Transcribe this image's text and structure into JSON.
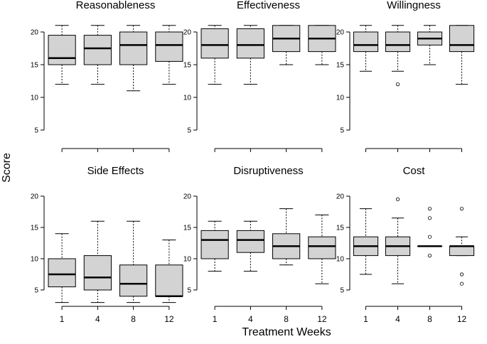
{
  "figure": {
    "ylabel": "Score",
    "xlabel": "Treatment Weeks",
    "box_fill": "#d3d3d3"
  },
  "chart_data": [
    {
      "type": "boxplot",
      "title": "Reasonableness",
      "categories": [
        "1",
        "4",
        "8",
        "12"
      ],
      "ylim": [
        5,
        21
      ],
      "yticks": [
        "5",
        "10",
        "15",
        "20"
      ],
      "boxes": [
        {
          "min": 12,
          "q1": 15,
          "median": 16,
          "q3": 19.5,
          "max": 21,
          "outliers": []
        },
        {
          "min": 12,
          "q1": 15,
          "median": 17.5,
          "q3": 19.5,
          "max": 21,
          "outliers": []
        },
        {
          "min": 11,
          "q1": 15,
          "median": 18,
          "q3": 20,
          "max": 21,
          "outliers": []
        },
        {
          "min": 12,
          "q1": 15.5,
          "median": 18,
          "q3": 20,
          "max": 21,
          "outliers": []
        }
      ]
    },
    {
      "type": "boxplot",
      "title": "Effectiveness",
      "categories": [
        "1",
        "4",
        "8",
        "12"
      ],
      "ylim": [
        5,
        21
      ],
      "yticks": [
        "5",
        "10",
        "15",
        "20"
      ],
      "boxes": [
        {
          "min": 12,
          "q1": 16,
          "median": 18,
          "q3": 20.5,
          "max": 21,
          "outliers": []
        },
        {
          "min": 12,
          "q1": 16,
          "median": 18,
          "q3": 20.5,
          "max": 21,
          "outliers": []
        },
        {
          "min": 15,
          "q1": 17,
          "median": 19,
          "q3": 21,
          "max": 21,
          "outliers": []
        },
        {
          "min": 15,
          "q1": 17,
          "median": 19,
          "q3": 21,
          "max": 21,
          "outliers": []
        }
      ]
    },
    {
      "type": "boxplot",
      "title": "Willingness",
      "categories": [
        "1",
        "4",
        "8",
        "12"
      ],
      "ylim": [
        5,
        21
      ],
      "yticks": [
        "5",
        "10",
        "15",
        "20"
      ],
      "boxes": [
        {
          "min": 14,
          "q1": 17,
          "median": 18,
          "q3": 20,
          "max": 21,
          "outliers": []
        },
        {
          "min": 14,
          "q1": 17,
          "median": 18,
          "q3": 20,
          "max": 21,
          "outliers": [
            12
          ]
        },
        {
          "min": 15,
          "q1": 18,
          "median": 19,
          "q3": 20,
          "max": 21,
          "outliers": []
        },
        {
          "min": 12,
          "q1": 17,
          "median": 18,
          "q3": 21,
          "max": 21,
          "outliers": []
        }
      ]
    },
    {
      "type": "boxplot",
      "title": "Side Effects",
      "categories": [
        "1",
        "4",
        "8",
        "12"
      ],
      "ylim": [
        3,
        20
      ],
      "yticks": [
        "5",
        "10",
        "15",
        "20"
      ],
      "boxes": [
        {
          "min": 3,
          "q1": 5.5,
          "median": 7.5,
          "q3": 10,
          "max": 14,
          "outliers": []
        },
        {
          "min": 3,
          "q1": 5,
          "median": 7,
          "q3": 10.5,
          "max": 16,
          "outliers": []
        },
        {
          "min": 3,
          "q1": 4,
          "median": 6,
          "q3": 9,
          "max": 16,
          "outliers": []
        },
        {
          "min": 3,
          "q1": 4,
          "median": 4,
          "q3": 9,
          "max": 13,
          "outliers": []
        }
      ]
    },
    {
      "type": "boxplot",
      "title": "Disruptiveness",
      "categories": [
        "1",
        "4",
        "8",
        "12"
      ],
      "ylim": [
        5,
        20
      ],
      "yticks": [
        "5",
        "10",
        "15",
        "20"
      ],
      "boxes": [
        {
          "min": 8,
          "q1": 10,
          "median": 13,
          "q3": 14.5,
          "max": 16,
          "outliers": []
        },
        {
          "min": 8,
          "q1": 11,
          "median": 13,
          "q3": 14.5,
          "max": 16,
          "outliers": []
        },
        {
          "min": 9,
          "q1": 10,
          "median": 12,
          "q3": 14,
          "max": 18,
          "outliers": []
        },
        {
          "min": 6,
          "q1": 10,
          "median": 12,
          "q3": 13.5,
          "max": 17,
          "outliers": []
        }
      ]
    },
    {
      "type": "boxplot",
      "title": "Cost",
      "categories": [
        "1",
        "4",
        "8",
        "12"
      ],
      "ylim": [
        5,
        20
      ],
      "yticks": [
        "5",
        "10",
        "15",
        "20"
      ],
      "boxes": [
        {
          "min": 7.5,
          "q1": 10.5,
          "median": 12,
          "q3": 13.5,
          "max": 18,
          "outliers": []
        },
        {
          "min": 6,
          "q1": 10.5,
          "median": 12,
          "q3": 13.5,
          "max": 16.5,
          "outliers": [
            19.5
          ]
        },
        {
          "min": 12,
          "q1": 12,
          "median": 12,
          "q3": 12,
          "max": 12,
          "outliers": [
            10.5,
            13.5,
            16.5,
            18
          ]
        },
        {
          "min": 10.5,
          "q1": 10.5,
          "median": 12,
          "q3": 12,
          "max": 13.5,
          "outliers": [
            6,
            7.5,
            18
          ]
        }
      ]
    }
  ]
}
